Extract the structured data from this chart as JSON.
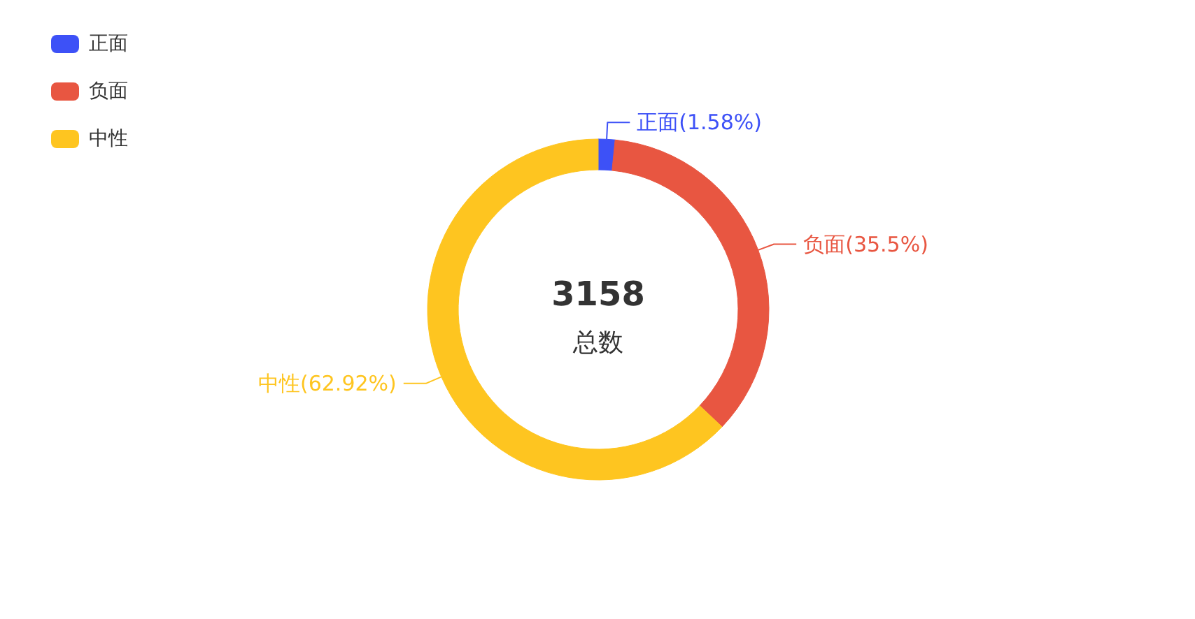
{
  "chart_data": {
    "type": "donut",
    "categories": [
      "正面",
      "负面",
      "中性"
    ],
    "values": [
      1.58,
      35.5,
      62.92
    ],
    "colors": [
      "#3d51f7",
      "#e85641",
      "#fec520"
    ],
    "value_labels": [
      "正面(1.58%)",
      "负面(35.5%)",
      "中性(62.92%)"
    ],
    "annotations": [
      "3158",
      "总数"
    ],
    "legend": "top left"
  }
}
